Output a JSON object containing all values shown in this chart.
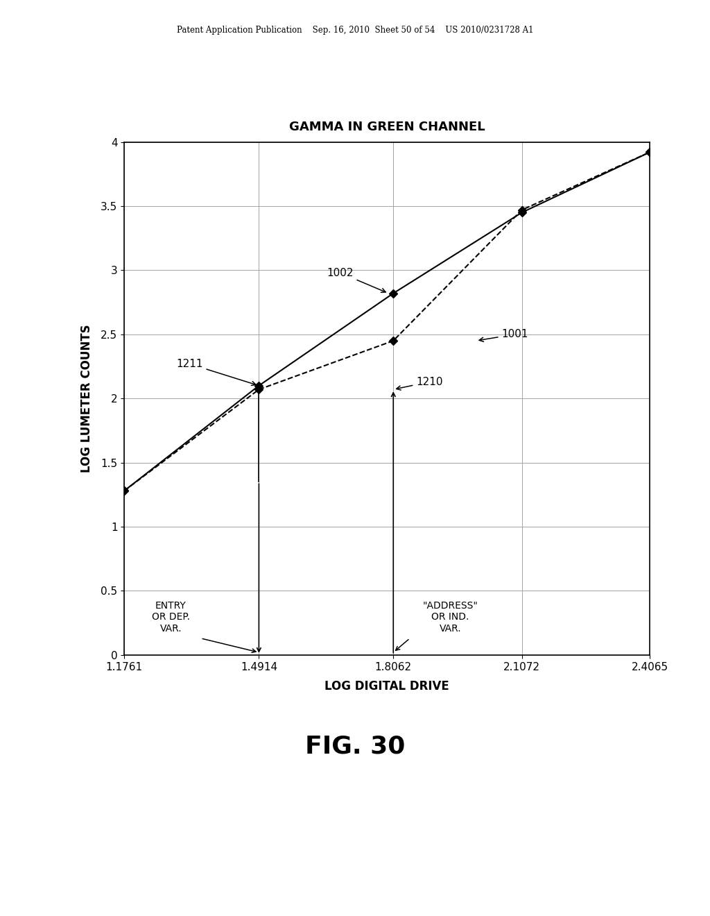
{
  "title": "GAMMA IN GREEN CHANNEL",
  "xlabel": "LOG DIGITAL DRIVE",
  "ylabel": "LOG LUMETER COUNTS",
  "fig_label": "FIG. 30",
  "header_text": "Patent Application Publication    Sep. 16, 2010  Sheet 50 of 54    US 2010/0231728 A1",
  "xticks": [
    1.1761,
    1.4914,
    1.8062,
    2.1072,
    2.4065
  ],
  "yticks": [
    0,
    0.5,
    1,
    1.5,
    2,
    2.5,
    3,
    3.5,
    4
  ],
  "xlim": [
    1.1761,
    2.4065
  ],
  "ylim": [
    0,
    4
  ],
  "curve1001_x": [
    1.1761,
    1.4914,
    1.8062,
    2.1072,
    2.4065
  ],
  "curve1001_y": [
    1.28,
    2.07,
    2.45,
    3.47,
    3.92
  ],
  "curve1002_x": [
    1.1761,
    1.4914,
    1.8062,
    2.1072,
    2.4065
  ],
  "curve1002_y": [
    1.28,
    2.1,
    2.82,
    3.45,
    3.92
  ],
  "background_color": "#ffffff",
  "line_color": "#000000",
  "marker_color": "#000000"
}
